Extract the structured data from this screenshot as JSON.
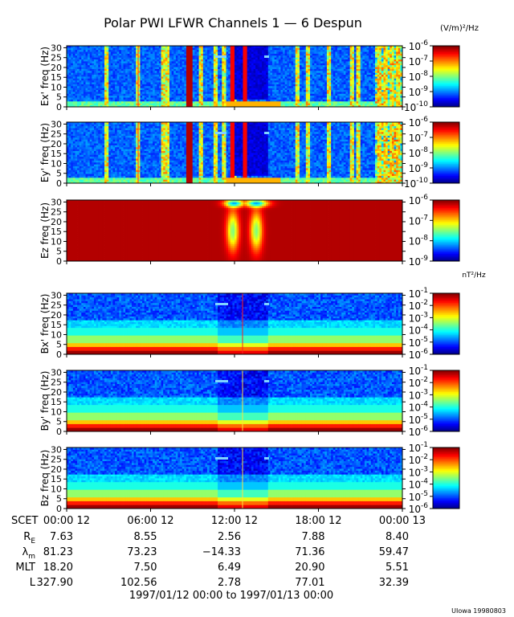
{
  "chart_data": {
    "type": "heatmap",
    "title": "Polar PWI LFWR Channels 1 — 6 Despun",
    "electric_unit": "(V/m)²/Hz",
    "magnetic_unit": "nT²/Hz",
    "panels": [
      {
        "ylabel": "Ex' freq (Hz)",
        "yticks": [
          "0",
          "5",
          "10",
          "15",
          "20",
          "25",
          "30"
        ],
        "ylim": [
          0,
          31
        ],
        "colorbar": {
          "kind": "E",
          "ticks": [
            [
              "10",
              "-6"
            ],
            [
              "10",
              "-7"
            ],
            [
              "10",
              "-8"
            ],
            [
              "10",
              "-9"
            ],
            [
              "10",
              "-10"
            ]
          ],
          "range_exp": [
            -10,
            -6
          ]
        }
      },
      {
        "ylabel": "Ey' freq (Hz)",
        "yticks": [
          "0",
          "5",
          "10",
          "15",
          "20",
          "25",
          "30"
        ],
        "ylim": [
          0,
          31
        ],
        "colorbar": {
          "kind": "E",
          "ticks": [
            [
              "10",
              "-6"
            ],
            [
              "10",
              "-7"
            ],
            [
              "10",
              "-8"
            ],
            [
              "10",
              "-9"
            ],
            [
              "10",
              "-10"
            ]
          ],
          "range_exp": [
            -10,
            -6
          ]
        }
      },
      {
        "ylabel": "Ez freq (Hz)",
        "yticks": [
          "0",
          "5",
          "10",
          "15",
          "20",
          "25",
          "30"
        ],
        "ylim": [
          0,
          31
        ],
        "colorbar": {
          "kind": "E",
          "ticks": [
            [
              "10",
              "-6"
            ],
            [
              "10",
              "-7"
            ],
            [
              "10",
              "-8"
            ],
            [
              "10",
              "-9"
            ]
          ],
          "range_exp": [
            -9,
            -6
          ]
        }
      },
      {
        "ylabel": "Bx' freq (Hz)",
        "yticks": [
          "0",
          "5",
          "10",
          "15",
          "20",
          "25",
          "30"
        ],
        "ylim": [
          0,
          31
        ],
        "colorbar": {
          "kind": "B",
          "ticks": [
            [
              "10",
              "-1"
            ],
            [
              "10",
              "-2"
            ],
            [
              "10",
              "-3"
            ],
            [
              "10",
              "-4"
            ],
            [
              "10",
              "-5"
            ],
            [
              "10",
              "-6"
            ]
          ],
          "range_exp": [
            -6,
            -1
          ]
        }
      },
      {
        "ylabel": "By' freq (Hz)",
        "yticks": [
          "0",
          "5",
          "10",
          "15",
          "20",
          "25",
          "30"
        ],
        "ylim": [
          0,
          31
        ],
        "colorbar": {
          "kind": "B",
          "ticks": [
            [
              "10",
              "-1"
            ],
            [
              "10",
              "-2"
            ],
            [
              "10",
              "-3"
            ],
            [
              "10",
              "-4"
            ],
            [
              "10",
              "-5"
            ],
            [
              "10",
              "-6"
            ]
          ],
          "range_exp": [
            -6,
            -1
          ]
        }
      },
      {
        "ylabel": "Bz freq (Hz)",
        "yticks": [
          "0",
          "5",
          "10",
          "15",
          "20",
          "25",
          "30"
        ],
        "ylim": [
          0,
          31
        ],
        "colorbar": {
          "kind": "B",
          "ticks": [
            [
              "10",
              "-1"
            ],
            [
              "10",
              "-2"
            ],
            [
              "10",
              "-3"
            ],
            [
              "10",
              "-4"
            ],
            [
              "10",
              "-5"
            ],
            [
              "10",
              "-6"
            ]
          ],
          "range_exp": [
            -6,
            -1
          ]
        }
      }
    ],
    "x_ticks": [
      "00:00 12",
      "06:00 12",
      "12:00 12",
      "18:00 12",
      "00:00 13"
    ],
    "ephemeris": [
      {
        "label": "SCET",
        "values": []
      },
      {
        "label": "R",
        "sub": "E",
        "values": [
          "7.63",
          "8.55",
          "2.56",
          "7.88",
          "8.40"
        ]
      },
      {
        "label": "λ",
        "sub": "m",
        "values": [
          "81.23",
          "73.23",
          "−14.33",
          "71.36",
          "59.47"
        ]
      },
      {
        "label": "MLT",
        "values": [
          "18.20",
          "7.50",
          "6.49",
          "20.90",
          "5.51"
        ]
      },
      {
        "label": "L",
        "values": [
          "327.90",
          "102.56",
          "2.78",
          "77.01",
          "32.39"
        ]
      }
    ],
    "date_range": "1997/01/12 00:00 to 1997/01/13 00:00",
    "footer": "UIowa 19980803"
  }
}
